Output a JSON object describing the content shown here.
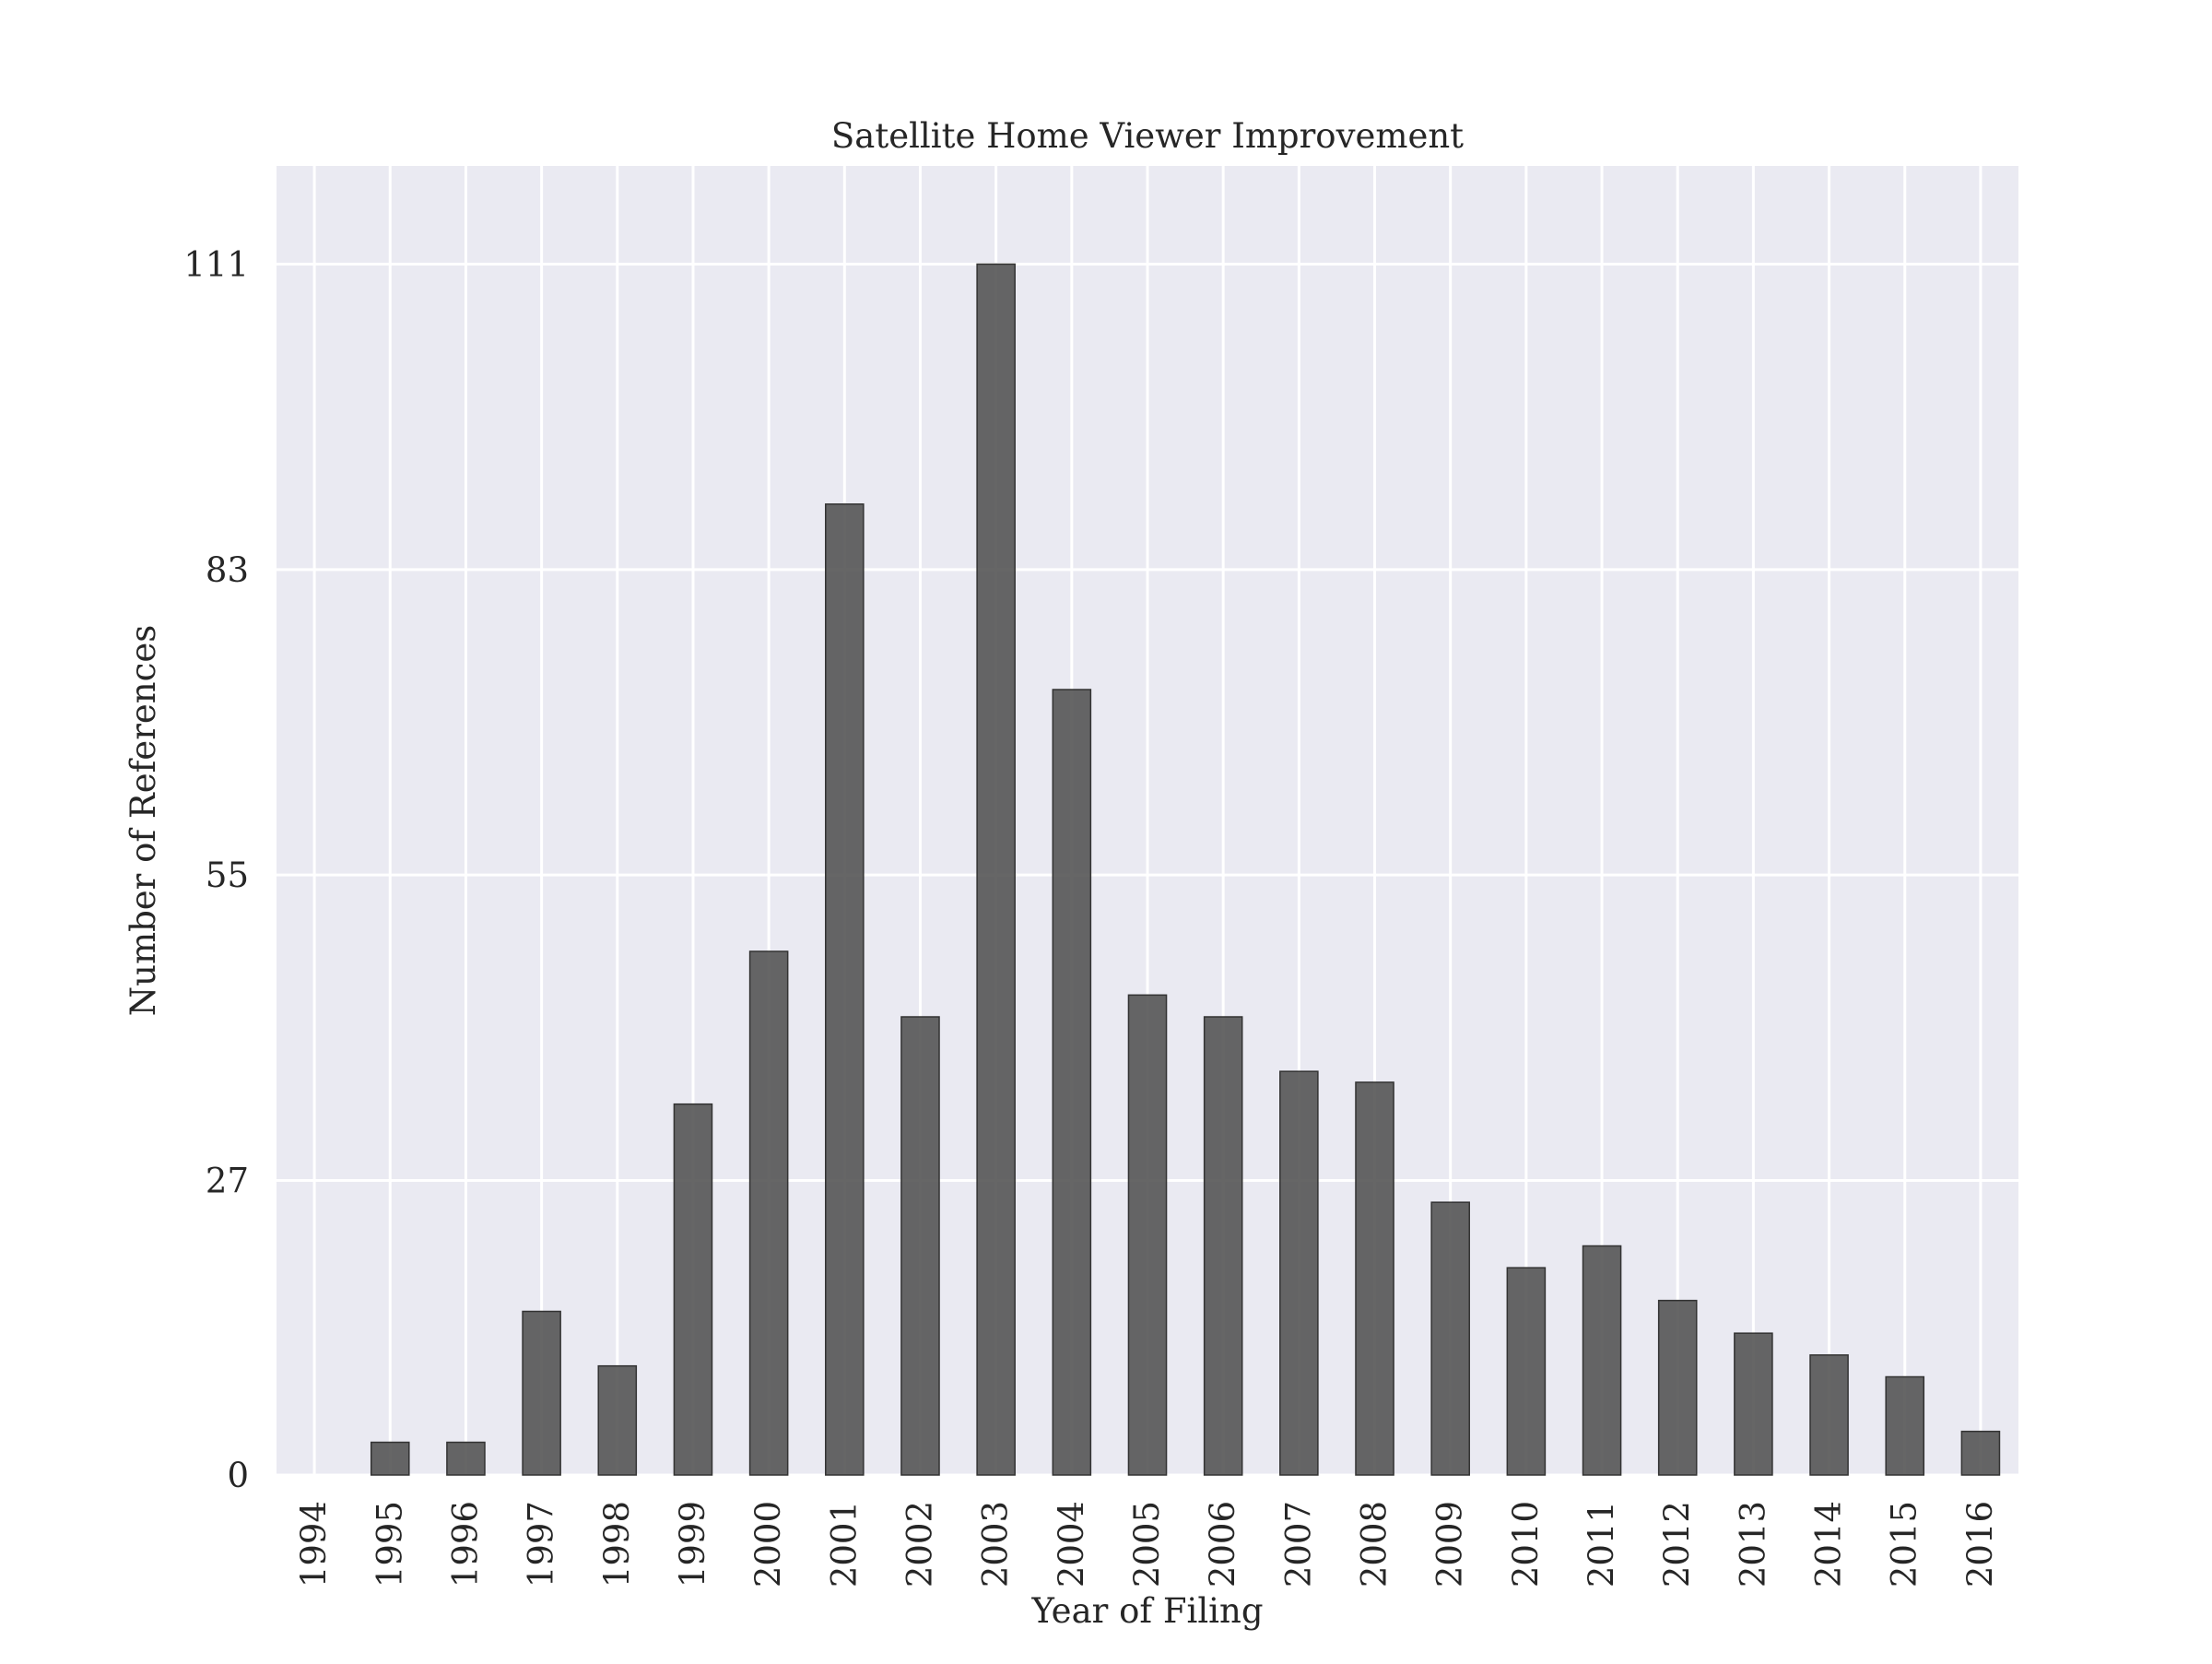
{
  "chart_data": {
    "type": "bar",
    "title": "Satellite Home Viewer Improvement",
    "xlabel": "Year of Filing",
    "ylabel": "Number of References",
    "categories": [
      "1994",
      "1995",
      "1996",
      "1997",
      "1998",
      "1999",
      "2000",
      "2001",
      "2002",
      "2003",
      "2004",
      "2005",
      "2006",
      "2007",
      "2008",
      "2009",
      "2010",
      "2011",
      "2012",
      "2013",
      "2014",
      "2015",
      "2016"
    ],
    "values": [
      0,
      3,
      3,
      15,
      10,
      34,
      48,
      89,
      42,
      111,
      72,
      44,
      42,
      37,
      36,
      25,
      19,
      21,
      16,
      13,
      11,
      9,
      4
    ],
    "yticks": [
      0,
      27,
      55,
      83,
      111
    ],
    "ylim": [
      0,
      120
    ],
    "grid": true,
    "bar_color": "#555555",
    "background_color": "#eaeaf2",
    "grid_color": "#ffffff"
  }
}
